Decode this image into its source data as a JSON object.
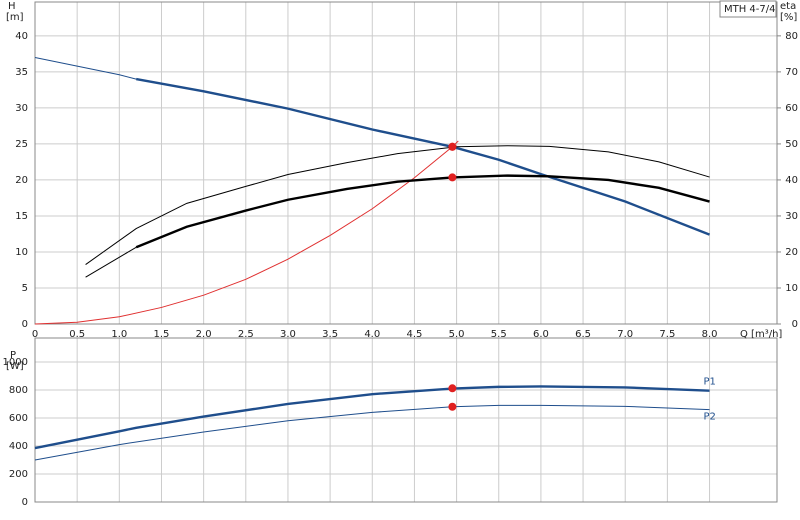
{
  "chart_data": [
    {
      "type": "line",
      "title": "MTH 4-7/4",
      "ylabel": [
        "H",
        "[m]"
      ],
      "y2label": [
        "eta",
        "[%]"
      ],
      "xlabel": "Q [m³/h]",
      "xlim": [
        0,
        8.8
      ],
      "xticks": [
        0,
        0.5,
        {
          "value": 1,
          "label": "1.0"
        },
        1.5,
        {
          "value": 2,
          "label": "2.0"
        },
        2.5,
        {
          "value": 3,
          "label": "3.0"
        },
        3.5,
        {
          "value": 4,
          "label": "4.0"
        },
        4.5,
        {
          "value": 5,
          "label": "5.0"
        },
        5.5,
        {
          "value": 6,
          "label": "6.0"
        },
        6.5,
        {
          "value": 7,
          "label": "7.0"
        },
        7.5,
        {
          "value": 8,
          "label": "8.0"
        }
      ],
      "ylim": [
        0,
        44.7
      ],
      "yticks": [
        0,
        5,
        10,
        15,
        20,
        25,
        30,
        35,
        40
      ],
      "y2lim": [
        0,
        89.4
      ],
      "y2ticks": [
        0,
        10,
        20,
        30,
        40,
        50,
        60,
        70,
        80
      ],
      "grid": true,
      "series": [
        {
          "color": "#e03030",
          "bold": false,
          "x": [
            0,
            0.5,
            1,
            1.5,
            2,
            2.5,
            3,
            3.5,
            4,
            4.5,
            4.95,
            5.02
          ],
          "values": [
            0,
            0.25,
            1,
            2.3,
            4,
            6.2,
            9,
            12.3,
            16,
            20.3,
            24.6,
            25.4
          ]
        },
        {
          "color": "#1f4e8c",
          "bold": false,
          "x": [
            0,
            0.5,
            1,
            1.2
          ],
          "values": [
            37,
            35.8,
            34.6,
            34
          ]
        },
        {
          "color": "#1f4e8c",
          "bold": true,
          "x": [
            1.2,
            2,
            3,
            4,
            4.95,
            5.5,
            6,
            7,
            8
          ],
          "values": [
            34,
            32.3,
            29.9,
            27,
            24.6,
            22.8,
            20.8,
            17,
            12.4
          ]
        },
        {
          "color": "#000000",
          "bold": false,
          "axis": "y2",
          "x": [
            0.6,
            1.2,
            1.8,
            2.5,
            3,
            3.7,
            4.3,
            5,
            5.6,
            6.1,
            6.8,
            7.4,
            8
          ],
          "values": [
            16.5,
            26.5,
            33.5,
            38.2,
            41.5,
            44.8,
            47.3,
            49.2,
            49.5,
            49.3,
            47.8,
            45,
            40.8
          ]
        },
        {
          "color": "#000000",
          "bold": false,
          "axis": "y2",
          "x": [
            0.6,
            1.2
          ],
          "values": [
            13,
            21.3
          ]
        },
        {
          "color": "#000000",
          "bold": true,
          "axis": "y2",
          "x": [
            1.2,
            1.8,
            2.5,
            3,
            3.7,
            4.3,
            4.95,
            5.6,
            6.1,
            6.8,
            7.4,
            8
          ],
          "values": [
            21.3,
            27,
            31.5,
            34.5,
            37.5,
            39.5,
            40.7,
            41.2,
            41,
            40,
            37.8,
            34
          ]
        },
        {
          "marker": "dot",
          "color": "#f0a020",
          "x": [
            4.95
          ],
          "values": [
            24.6
          ]
        },
        {
          "marker": "dot",
          "color": "#e02020",
          "axis": "y2",
          "x": [
            4.95,
            4.95
          ],
          "values": [
            49.2,
            40.7
          ]
        }
      ]
    },
    {
      "type": "line",
      "ylabel": [
        "P",
        "[W]"
      ],
      "xlim": [
        0,
        8.8
      ],
      "ylim": [
        0,
        1171
      ],
      "yticks": [
        0,
        200,
        400,
        600,
        800,
        1000
      ],
      "grid": true,
      "series": [
        {
          "name": "P1",
          "color": "#1f4e8c",
          "bold": true,
          "x": [
            0,
            0.5,
            1,
            1.2,
            2,
            3,
            4,
            4.95,
            5.5,
            6,
            7,
            8
          ],
          "values": [
            385,
            445,
            505,
            530,
            610,
            700,
            770,
            810,
            822,
            825,
            818,
            795
          ]
        },
        {
          "name": "P2",
          "color": "#1f4e8c",
          "bold": false,
          "x": [
            0,
            1,
            2,
            3,
            4,
            4.95,
            5.5,
            6,
            7,
            8
          ],
          "values": [
            300,
            410,
            500,
            580,
            640,
            680,
            690,
            690,
            683,
            660
          ]
        },
        {
          "marker": "dot",
          "color": "#e02020",
          "x": [
            4.95,
            4.95
          ],
          "values": [
            812,
            680
          ]
        }
      ]
    }
  ]
}
